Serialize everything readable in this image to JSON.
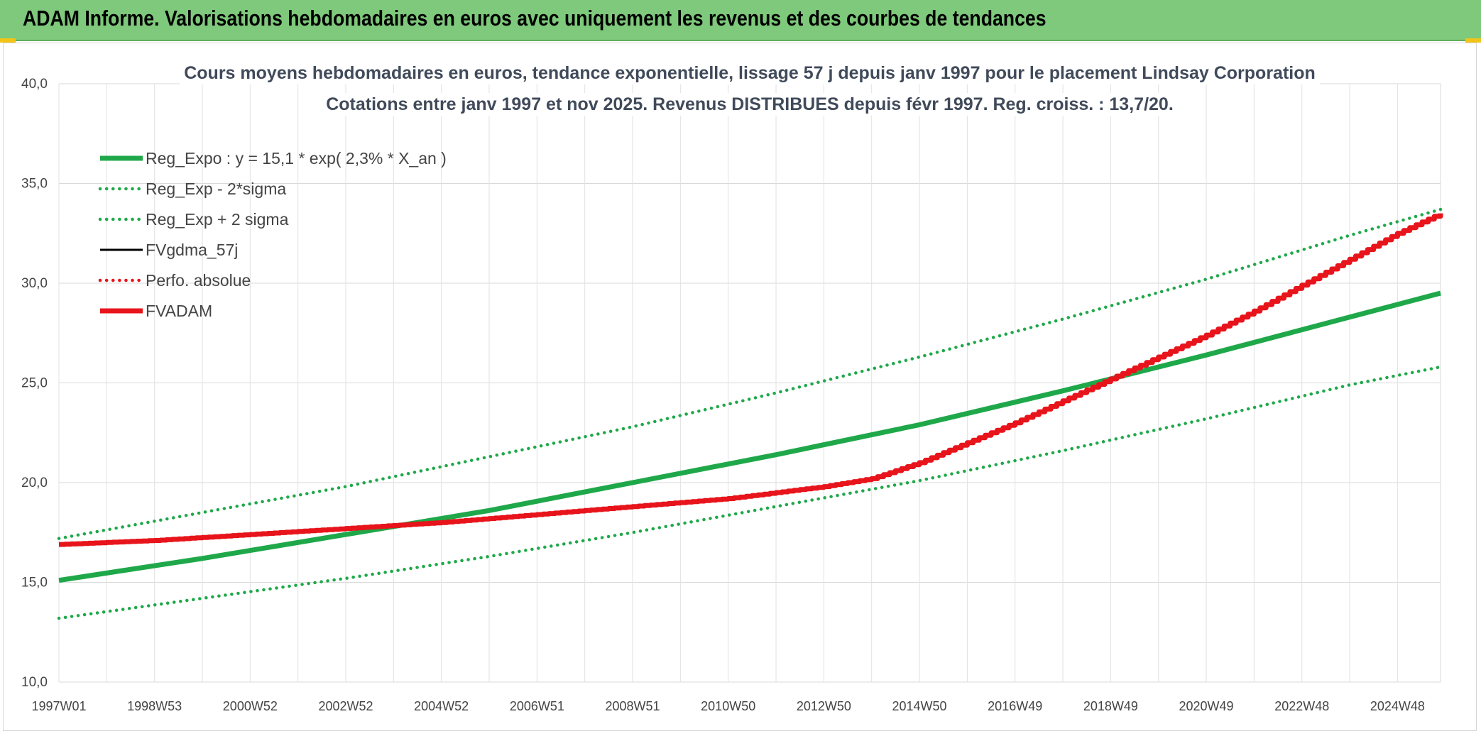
{
  "header": {
    "title": "ADAM Informe. Valorisations hebdomadaires en euros avec uniquement les revenus et des courbes de tendances",
    "background": "#7ec97b"
  },
  "chart_data": {
    "type": "line",
    "title": "Cours moyens hebdomadaires en euros, tendance exponentielle, lissage 57 j depuis janv 1997 pour le placement Lindsay Corporation",
    "subtitle": "Cotations entre janv 1997 et nov 2025. Revenus DISTRIBUES depuis févr 1997. Reg. croiss. : 13,7/20.",
    "xlabel": "",
    "ylabel": "",
    "ylim": [
      10,
      40
    ],
    "yticks": [
      "10,0",
      "15,0",
      "20,0",
      "25,0",
      "30,0",
      "35,0",
      "40,0"
    ],
    "x_range": [
      1997.0,
      2025.9
    ],
    "xticks": [
      {
        "label": "1997W01",
        "x": 1997.0
      },
      {
        "label": "1998W53",
        "x": 1999.0
      },
      {
        "label": "2000W52",
        "x": 2001.0
      },
      {
        "label": "2002W52",
        "x": 2003.0
      },
      {
        "label": "2004W52",
        "x": 2005.0
      },
      {
        "label": "2006W51",
        "x": 2007.0
      },
      {
        "label": "2008W51",
        "x": 2009.0
      },
      {
        "label": "2010W50",
        "x": 2011.0
      },
      {
        "label": "2012W50",
        "x": 2013.0
      },
      {
        "label": "2014W50",
        "x": 2015.0
      },
      {
        "label": "2016W49",
        "x": 2017.0
      },
      {
        "label": "2018W49",
        "x": 2019.0
      },
      {
        "label": "2020W49",
        "x": 2021.0
      },
      {
        "label": "2022W48",
        "x": 2023.0
      },
      {
        "label": "2024W48",
        "x": 2025.0
      }
    ],
    "grid": true,
    "legend_position": "top-left",
    "series": [
      {
        "name": "Reg_Expo : y = 15,1 * exp( 2,3% *  X_an )",
        "color": "#1fa84a",
        "style": "solid",
        "width": "thick",
        "x": [
          1997,
          2000,
          2003,
          2006,
          2009,
          2012,
          2015,
          2018,
          2021,
          2024,
          2025.9
        ],
        "y": [
          15.1,
          16.2,
          17.4,
          18.6,
          20.0,
          21.4,
          22.9,
          24.6,
          26.4,
          28.3,
          29.5
        ]
      },
      {
        "name": "Reg_Exp - 2*sigma",
        "color": "#1fa84a",
        "style": "dotted",
        "width": "medium",
        "x": [
          1997,
          2000,
          2003,
          2006,
          2009,
          2012,
          2015,
          2018,
          2021,
          2024,
          2025.9
        ],
        "y": [
          13.2,
          14.2,
          15.2,
          16.3,
          17.5,
          18.8,
          20.1,
          21.6,
          23.2,
          24.9,
          25.8
        ]
      },
      {
        "name": "Reg_Exp + 2 sigma",
        "color": "#1fa84a",
        "style": "dotted",
        "width": "medium",
        "x": [
          1997,
          2000,
          2003,
          2006,
          2009,
          2012,
          2015,
          2018,
          2021,
          2024,
          2025.9
        ],
        "y": [
          17.2,
          18.5,
          19.8,
          21.3,
          22.8,
          24.5,
          26.3,
          28.2,
          30.2,
          32.4,
          33.7
        ]
      },
      {
        "name": "FVgdma_57j",
        "color": "#000000",
        "style": "solid",
        "width": "thin",
        "x": [],
        "y": []
      },
      {
        "name": "Perfo. absolue",
        "color": "#e8141b",
        "style": "dotted",
        "width": "medium",
        "x": [],
        "y": []
      },
      {
        "name": "FVADAM",
        "color": "#e8141b",
        "style": "solid",
        "width": "thick",
        "x": [
          1997,
          1999,
          2001,
          2003,
          2005,
          2007,
          2009,
          2011,
          2013,
          2014,
          2015,
          2016,
          2017,
          2018,
          2019,
          2020,
          2021,
          2022,
          2023,
          2024,
          2025,
          2025.9
        ],
        "y": [
          16.9,
          17.1,
          17.4,
          17.7,
          18.0,
          18.4,
          18.8,
          19.2,
          19.8,
          20.2,
          21.0,
          22.0,
          23.0,
          24.1,
          25.2,
          26.3,
          27.4,
          28.6,
          29.9,
          31.2,
          32.5,
          33.5
        ]
      }
    ]
  }
}
